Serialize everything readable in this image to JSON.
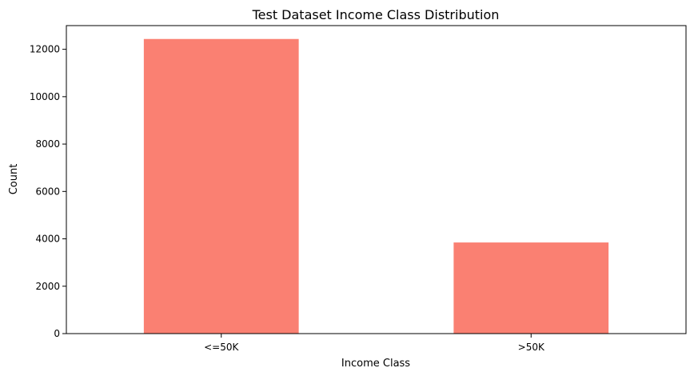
{
  "chart_data": {
    "type": "bar",
    "title": "Test Dataset Income Class Distribution",
    "xlabel": "Income Class",
    "ylabel": "Count",
    "categories": [
      "<=50K",
      ">50K"
    ],
    "values": [
      12435,
      3846
    ],
    "ylim": [
      0,
      13000
    ],
    "yticks": [
      0,
      2000,
      4000,
      6000,
      8000,
      10000,
      12000
    ],
    "bar_color": "#fa8072",
    "grid": false,
    "legend": "none"
  }
}
